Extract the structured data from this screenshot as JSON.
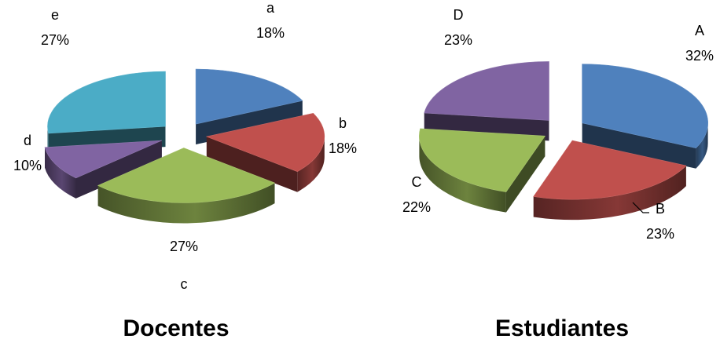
{
  "chart_data": [
    {
      "type": "pie",
      "style": "3d-exploded",
      "title": "Docentes",
      "categories": [
        "a",
        "b",
        "c",
        "d",
        "e"
      ],
      "values": [
        18,
        18,
        27,
        10,
        27
      ],
      "percent_labels": [
        "18%",
        "18%",
        "27%",
        "10%",
        "27%"
      ],
      "colors": [
        "#4F81BD",
        "#C0504D",
        "#9BBB59",
        "#8064A2",
        "#4BACC6"
      ]
    },
    {
      "type": "pie",
      "style": "3d-exploded",
      "title": "Estudiantes",
      "categories": [
        "A",
        "B",
        "C",
        "D"
      ],
      "values": [
        32,
        23,
        22,
        23
      ],
      "percent_labels": [
        "32%",
        "23%",
        "22%",
        "23%"
      ],
      "colors": [
        "#4F81BD",
        "#C0504D",
        "#9BBB59",
        "#8064A2"
      ]
    }
  ]
}
